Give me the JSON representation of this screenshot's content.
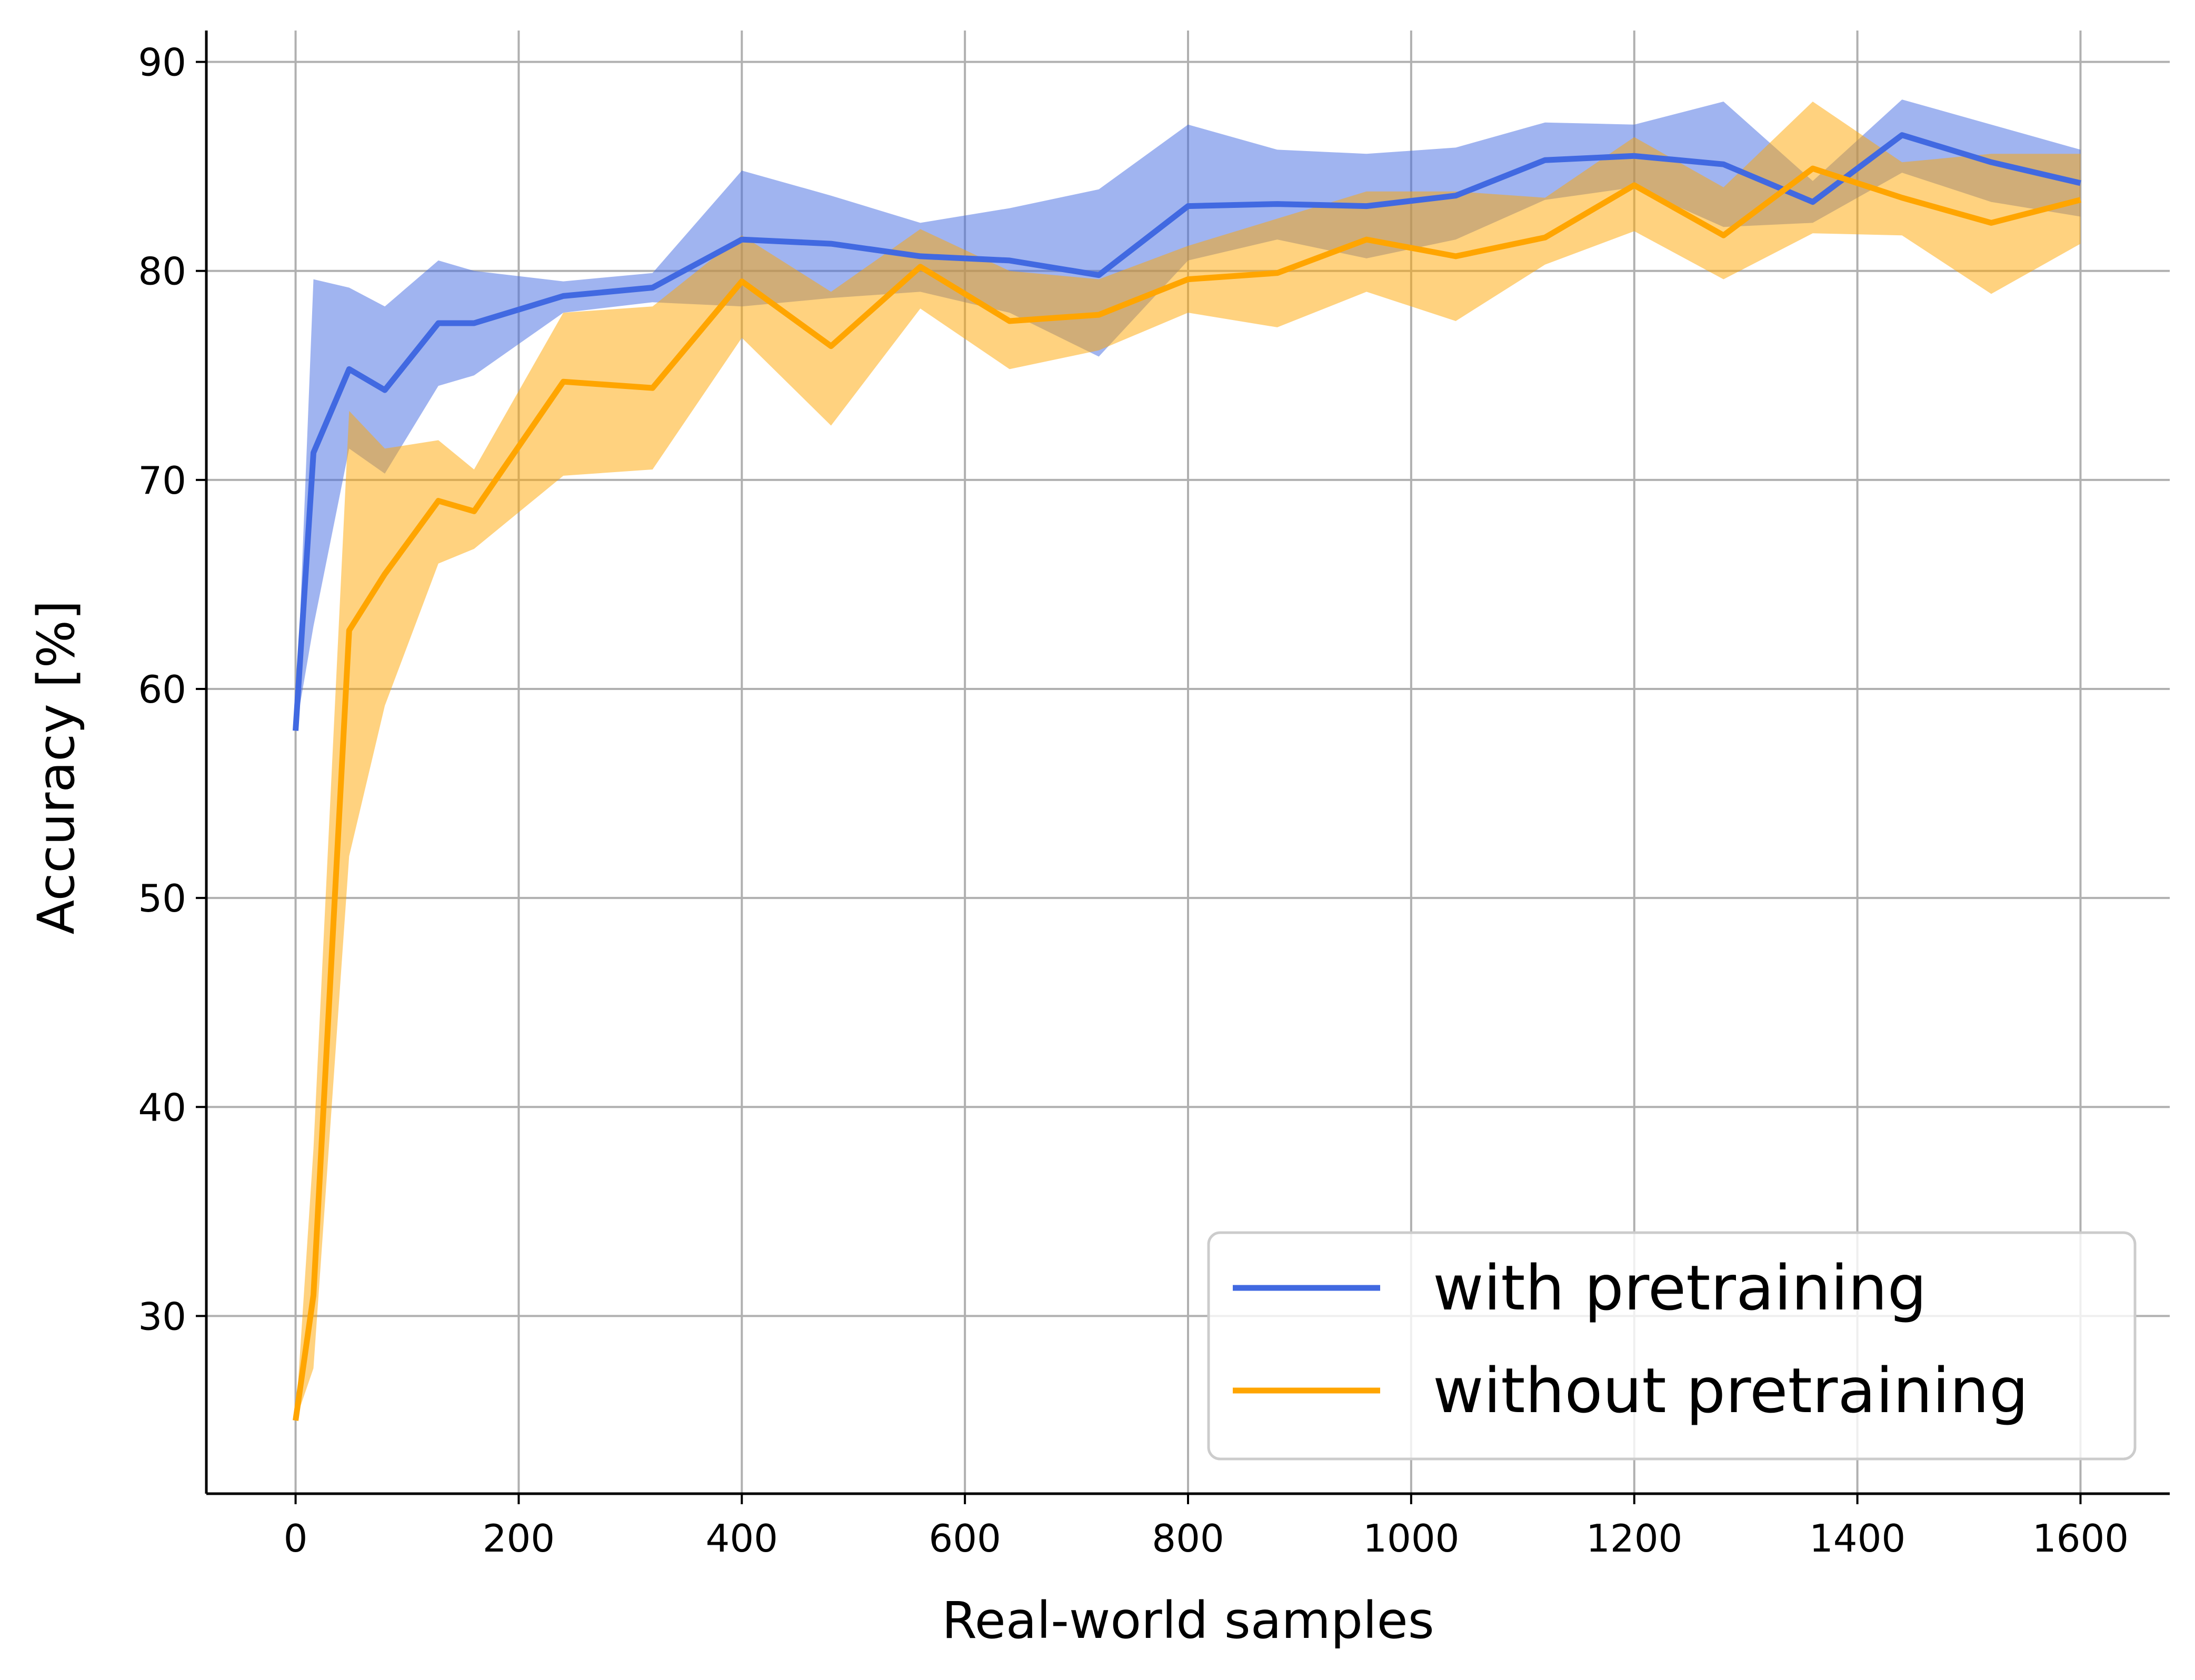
{
  "chart_data": {
    "type": "line",
    "xlabel": "Real-world samples",
    "ylabel": "Accuracy [%]",
    "xlim": [
      -80,
      1680
    ],
    "ylim": [
      21.5,
      91.5
    ],
    "xticks": [
      0,
      200,
      400,
      600,
      800,
      1000,
      1200,
      1400,
      1600
    ],
    "yticks": [
      30,
      40,
      50,
      60,
      70,
      80,
      90
    ],
    "grid": true,
    "legend_position": "bottom-right",
    "x": [
      0,
      16,
      48,
      80,
      128,
      160,
      240,
      320,
      400,
      480,
      560,
      640,
      720,
      800,
      880,
      960,
      1040,
      1120,
      1200,
      1280,
      1360,
      1440,
      1520,
      1600
    ],
    "series": [
      {
        "name": "with pretraining",
        "color": "#4169E1",
        "band_color": "#9AB0EC",
        "values": [
          58.0,
          71.3,
          75.3,
          74.3,
          77.5,
          77.5,
          78.8,
          79.2,
          81.5,
          81.3,
          80.7,
          80.5,
          79.8,
          83.1,
          83.2,
          83.1,
          83.6,
          85.3,
          85.5,
          85.1,
          83.3,
          86.5,
          85.2,
          84.2
        ],
        "lower": [
          58.0,
          63.0,
          71.5,
          70.3,
          74.5,
          75.0,
          78.0,
          78.5,
          78.3,
          78.7,
          79.0,
          78.0,
          75.9,
          80.5,
          81.5,
          80.6,
          81.5,
          83.4,
          84.0,
          82.1,
          82.3,
          84.7,
          83.3,
          82.6
        ],
        "upper": [
          58.0,
          79.6,
          79.2,
          78.3,
          80.5,
          80.0,
          79.5,
          79.9,
          84.8,
          83.6,
          82.3,
          83.0,
          83.9,
          87.0,
          85.8,
          85.6,
          85.9,
          87.1,
          87.0,
          88.1,
          84.3,
          88.2,
          87.0,
          85.8
        ]
      },
      {
        "name": "without pretraining",
        "color": "#FFA500",
        "band_color": "#FFD27F",
        "values": [
          25.0,
          31.0,
          62.8,
          65.5,
          69.0,
          68.5,
          74.7,
          74.4,
          79.5,
          76.4,
          80.2,
          77.6,
          77.9,
          79.6,
          79.9,
          81.5,
          80.7,
          81.6,
          84.1,
          81.7,
          84.9,
          83.5,
          82.3,
          83.4
        ],
        "lower": [
          25.0,
          27.5,
          52.0,
          59.2,
          66.0,
          66.7,
          70.2,
          70.5,
          76.8,
          72.6,
          78.2,
          75.3,
          76.2,
          78.0,
          77.3,
          79.0,
          77.6,
          80.3,
          81.9,
          79.6,
          81.8,
          81.7,
          78.9,
          81.3
        ],
        "upper": [
          25.0,
          38.0,
          73.3,
          71.5,
          71.9,
          70.5,
          78.0,
          78.3,
          81.7,
          79.0,
          82.0,
          80.0,
          79.6,
          81.2,
          82.5,
          83.8,
          83.8,
          83.5,
          86.4,
          84.0,
          88.1,
          85.2,
          85.6,
          85.6
        ]
      }
    ]
  }
}
